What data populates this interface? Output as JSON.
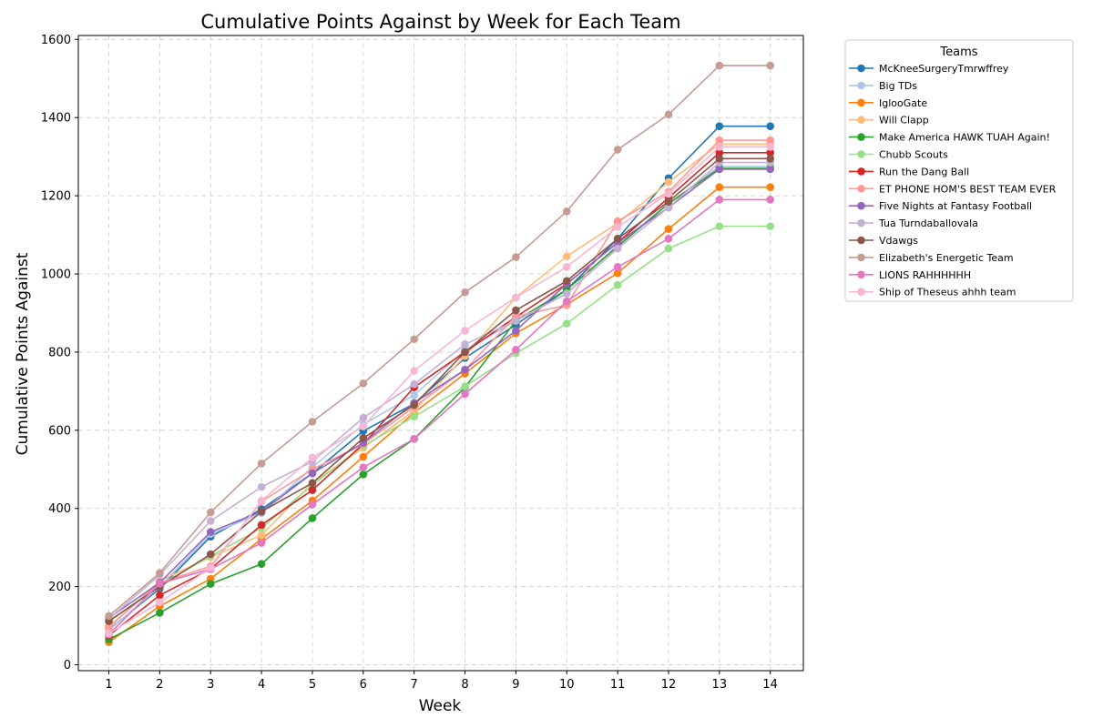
{
  "chart_data": {
    "type": "line",
    "title": "Cumulative Points Against by Week for Each Team",
    "xlabel": "Week",
    "ylabel": "Cumulative Points Against",
    "x": [
      1,
      2,
      3,
      4,
      5,
      6,
      7,
      8,
      9,
      10,
      11,
      12,
      13,
      14
    ],
    "xlim": [
      0.4,
      14.65
    ],
    "ylim": [
      -15,
      1610
    ],
    "yticks": [
      0,
      200,
      400,
      600,
      800,
      1000,
      1200,
      1400,
      1600
    ],
    "grid": true,
    "legend": {
      "title": "Teams",
      "placement": "outside-right"
    },
    "series": [
      {
        "name": "McKneeSurgeryTmrwffrey",
        "color": "#1f77b4",
        "values": [
          90,
          195,
          328,
          398,
          490,
          598,
          668,
          785,
          870,
          960,
          1090,
          1245,
          1378,
          1378
        ]
      },
      {
        "name": "Big TDs",
        "color": "#aec7e8",
        "values": [
          88,
          200,
          335,
          388,
          505,
          615,
          690,
          805,
          880,
          950,
          1075,
          1180,
          1275,
          1275
        ]
      },
      {
        "name": "IglooGate",
        "color": "#ff7f0e",
        "values": [
          58,
          150,
          220,
          322,
          420,
          532,
          645,
          745,
          848,
          922,
          1002,
          1115,
          1222,
          1222
        ]
      },
      {
        "name": "Will Clapp",
        "color": "#ffbb78",
        "values": [
          95,
          215,
          275,
          332,
          465,
          555,
          650,
          790,
          940,
          1045,
          1130,
          1235,
          1332,
          1332
        ]
      },
      {
        "name": "Make America HAWK TUAH Again!",
        "color": "#2ca02c",
        "values": [
          65,
          133,
          207,
          258,
          375,
          487,
          578,
          710,
          880,
          960,
          1070,
          1180,
          1270,
          1270
        ]
      },
      {
        "name": "Chubb Scouts",
        "color": "#98df8a",
        "values": [
          110,
          205,
          278,
          350,
          460,
          560,
          635,
          712,
          797,
          873,
          972,
          1065,
          1122,
          1122
        ]
      },
      {
        "name": "Run the Dang Ball",
        "color": "#d62728",
        "values": [
          75,
          178,
          245,
          358,
          447,
          565,
          710,
          800,
          890,
          975,
          1080,
          1195,
          1310,
          1310
        ]
      },
      {
        "name": "ET PHONE HOM'S BEST TEAM EVER",
        "color": "#ff9896",
        "values": [
          98,
          210,
          252,
          418,
          500,
          565,
          660,
          755,
          892,
          920,
          1135,
          1210,
          1342,
          1342
        ]
      },
      {
        "name": "Five Nights at Fantasy Football",
        "color": "#9467bd",
        "values": [
          120,
          210,
          340,
          392,
          490,
          568,
          670,
          755,
          855,
          975,
          1080,
          1170,
          1268,
          1268
        ]
      },
      {
        "name": "Tua Turndaballovala",
        "color": "#c5b0d5",
        "values": [
          118,
          230,
          368,
          455,
          520,
          632,
          718,
          820,
          880,
          950,
          1065,
          1170,
          1285,
          1285
        ]
      },
      {
        "name": "Vdawgs",
        "color": "#8c564b",
        "values": [
          112,
          200,
          283,
          392,
          465,
          580,
          665,
          800,
          907,
          982,
          1090,
          1185,
          1295,
          1295
        ]
      },
      {
        "name": "Elizabeth's Energetic Team",
        "color": "#c49c94",
        "values": [
          125,
          235,
          390,
          515,
          622,
          720,
          833,
          953,
          1043,
          1160,
          1318,
          1408,
          1533,
          1533
        ]
      },
      {
        "name": "LIONS RAHHHHHH",
        "color": "#e377c2",
        "values": [
          78,
          208,
          245,
          312,
          410,
          505,
          578,
          693,
          806,
          930,
          1018,
          1090,
          1190,
          1190
        ]
      },
      {
        "name": "Ship of Theseus ahhh team",
        "color": "#f7b6d2",
        "values": [
          80,
          160,
          248,
          420,
          530,
          610,
          752,
          855,
          940,
          1018,
          1120,
          1205,
          1325,
          1325
        ]
      }
    ]
  }
}
